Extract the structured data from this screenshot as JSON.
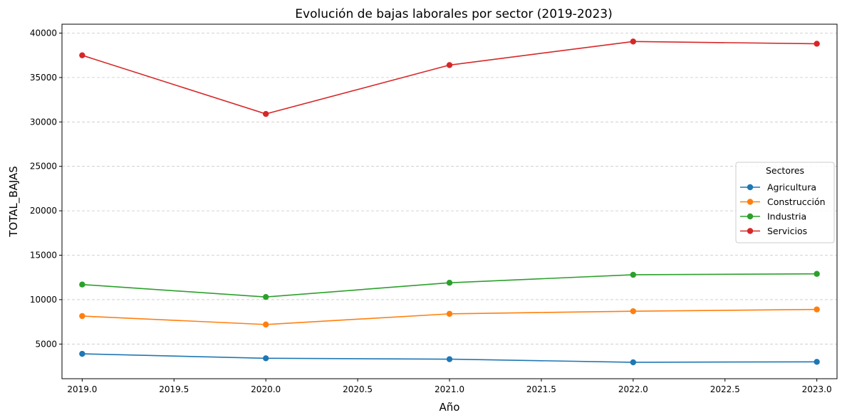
{
  "chart_data": {
    "type": "line",
    "title": "Evolución de bajas laborales por sector (2019-2023)",
    "xlabel": "Año",
    "ylabel": "TOTAL_BAJAS",
    "x": [
      2019,
      2020,
      2021,
      2022,
      2023
    ],
    "xlim": [
      2018.89,
      2023.11
    ],
    "ylim": [
      1100,
      41000
    ],
    "xticks": [
      2019.0,
      2019.5,
      2020.0,
      2020.5,
      2021.0,
      2021.5,
      2022.0,
      2022.5,
      2023.0
    ],
    "xtick_labels": [
      "2019.0",
      "2019.5",
      "2020.0",
      "2020.5",
      "2021.0",
      "2021.5",
      "2022.0",
      "2022.5",
      "2023.0"
    ],
    "yticks": [
      5000,
      10000,
      15000,
      20000,
      25000,
      30000,
      35000,
      40000
    ],
    "ytick_labels": [
      "5000",
      "10000",
      "15000",
      "20000",
      "25000",
      "30000",
      "35000",
      "40000"
    ],
    "grid": "y, dashed",
    "legend": {
      "title": "Sectores",
      "placement": "center-right"
    },
    "series": [
      {
        "name": "Agricultura",
        "color": "#1f77b4",
        "values": [
          3900,
          3400,
          3300,
          2950,
          3000
        ]
      },
      {
        "name": "Construcción",
        "color": "#ff7f0e",
        "values": [
          8150,
          7200,
          8400,
          8700,
          8900
        ]
      },
      {
        "name": "Industria",
        "color": "#2ca02c",
        "values": [
          11700,
          10300,
          11900,
          12800,
          12900
        ]
      },
      {
        "name": "Servicios",
        "color": "#d62728",
        "values": [
          37500,
          30900,
          36400,
          39050,
          38800
        ]
      }
    ]
  }
}
